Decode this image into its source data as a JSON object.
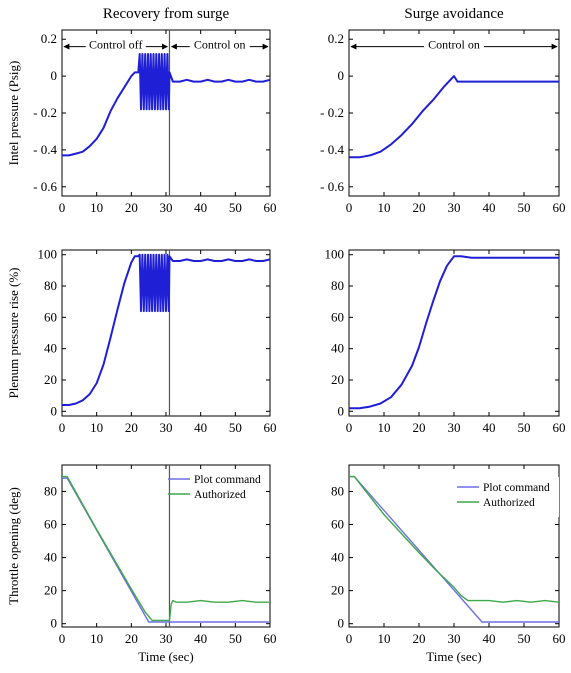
{
  "figure": {
    "column_titles": [
      "Recovery from surge",
      "Surge avoidance"
    ],
    "row_ylabels": [
      "Intel pressure (Psig)",
      "Plenum pressure rise (%)",
      "Throttle opening (deg)"
    ],
    "xlabel": "Time (sec)"
  },
  "colors": {
    "trace": "#1f1fd6",
    "command": "#6f6fe6",
    "authorized": "#3fa84a",
    "marker": "#555555"
  },
  "chart_data": [
    {
      "id": "inlet-recovery",
      "type": "line",
      "title": "Recovery from surge",
      "xlabel": "",
      "ylabel": "Intel pressure (Psig)",
      "xlim": [
        0,
        60
      ],
      "ylim": [
        -0.65,
        0.25
      ],
      "xticks": [
        0,
        10,
        20,
        30,
        40,
        50,
        60
      ],
      "yticks": [
        -0.6,
        -0.4,
        -0.2,
        0,
        0.2
      ],
      "ytick_labels": [
        "- 0.6",
        "- 0.4",
        "- 0.2",
        "0",
        "0.2"
      ],
      "grid": false,
      "vline": 31,
      "annotations": [
        {
          "text": "Control off",
          "x_start": 0,
          "x_end": 31,
          "y": 0.16
        },
        {
          "text": "Control on",
          "x_start": 31,
          "x_end": 60,
          "y": 0.16
        }
      ],
      "series": [
        {
          "x": [
            0,
            2,
            4,
            6,
            8,
            10,
            12,
            14,
            16,
            18,
            20,
            21,
            22,
            31,
            32,
            34,
            36,
            38,
            40,
            42,
            44,
            46,
            48,
            50,
            52,
            54,
            56,
            58,
            60
          ],
          "values": [
            -0.43,
            -0.43,
            -0.42,
            -0.41,
            -0.38,
            -0.34,
            -0.28,
            -0.19,
            -0.12,
            -0.06,
            0.0,
            0.02,
            0.02,
            0.02,
            -0.03,
            -0.03,
            -0.02,
            -0.03,
            -0.03,
            -0.02,
            -0.03,
            -0.03,
            -0.02,
            -0.03,
            -0.03,
            -0.02,
            -0.03,
            -0.03,
            -0.02
          ],
          "oscillation": {
            "x_from": 22,
            "x_to": 31,
            "high": 0.12,
            "low": -0.18,
            "period": 0.8
          }
        }
      ]
    },
    {
      "id": "inlet-avoidance",
      "type": "line",
      "title": "Surge avoidance",
      "xlabel": "",
      "ylabel": "",
      "xlim": [
        0,
        60
      ],
      "ylim": [
        -0.65,
        0.25
      ],
      "xticks": [
        0,
        10,
        20,
        30,
        40,
        50,
        60
      ],
      "yticks": [
        -0.6,
        -0.4,
        -0.2,
        0,
        0.2
      ],
      "ytick_labels": [
        "- 0.6",
        "- 0.4",
        "- 0.2",
        "0",
        "0.2"
      ],
      "grid": false,
      "annotations": [
        {
          "text": "Control on",
          "x_start": 0,
          "x_end": 60,
          "y": 0.16
        }
      ],
      "series": [
        {
          "x": [
            0,
            3,
            6,
            9,
            12,
            15,
            18,
            21,
            24,
            27,
            30,
            31,
            35,
            40,
            45,
            50,
            55,
            60
          ],
          "values": [
            -0.44,
            -0.44,
            -0.43,
            -0.41,
            -0.37,
            -0.32,
            -0.26,
            -0.19,
            -0.13,
            -0.06,
            0.0,
            -0.03,
            -0.03,
            -0.03,
            -0.03,
            -0.03,
            -0.03,
            -0.03
          ]
        }
      ]
    },
    {
      "id": "plenum-recovery",
      "type": "line",
      "title": "",
      "xlabel": "",
      "ylabel": "Plenum pressure rise (%)",
      "xlim": [
        0,
        60
      ],
      "ylim": [
        -3,
        103
      ],
      "xticks": [
        0,
        10,
        20,
        30,
        40,
        50,
        60
      ],
      "yticks": [
        0,
        20,
        40,
        60,
        80,
        100
      ],
      "ytick_labels": [
        "0",
        "20",
        "40",
        "60",
        "80",
        "100"
      ],
      "grid": false,
      "vline": 31,
      "series": [
        {
          "x": [
            0,
            2,
            4,
            6,
            8,
            10,
            12,
            14,
            16,
            18,
            20,
            21,
            22,
            31,
            32,
            34,
            36,
            38,
            40,
            42,
            44,
            46,
            48,
            50,
            52,
            54,
            56,
            58,
            60
          ],
          "values": [
            4,
            4,
            5,
            7,
            11,
            18,
            30,
            47,
            65,
            82,
            95,
            99,
            99,
            99,
            96,
            96,
            97,
            96,
            96,
            97,
            96,
            96,
            97,
            96,
            96,
            97,
            96,
            96,
            97
          ],
          "oscillation": {
            "x_from": 22,
            "x_to": 31,
            "high": 100,
            "low": 64,
            "period": 0.8
          }
        }
      ]
    },
    {
      "id": "plenum-avoidance",
      "type": "line",
      "title": "",
      "xlabel": "",
      "ylabel": "",
      "xlim": [
        0,
        60
      ],
      "ylim": [
        -3,
        103
      ],
      "xticks": [
        0,
        10,
        20,
        30,
        40,
        50,
        60
      ],
      "yticks": [
        0,
        20,
        40,
        60,
        80,
        100
      ],
      "ytick_labels": [
        "0",
        "20",
        "40",
        "60",
        "80",
        "100"
      ],
      "grid": false,
      "series": [
        {
          "x": [
            0,
            3,
            6,
            9,
            12,
            15,
            18,
            20,
            22,
            24,
            26,
            28,
            30,
            32,
            35,
            40,
            45,
            50,
            55,
            60
          ],
          "values": [
            2,
            2,
            3,
            5,
            9,
            17,
            29,
            41,
            56,
            70,
            83,
            93,
            99,
            99,
            98,
            98,
            98,
            98,
            98,
            98
          ]
        }
      ]
    },
    {
      "id": "throttle-recovery",
      "type": "line",
      "title": "",
      "xlabel": "Time (sec)",
      "ylabel": "Throttle opening (deg)",
      "xlim": [
        0,
        60
      ],
      "ylim": [
        -2,
        96
      ],
      "xticks": [
        0,
        10,
        20,
        30,
        40,
        50,
        60
      ],
      "yticks": [
        0,
        20,
        40,
        60,
        80
      ],
      "ytick_labels": [
        "0",
        "20",
        "40",
        "60",
        "80"
      ],
      "grid": false,
      "vline": 31,
      "legend": {
        "position": "top-right",
        "entries": [
          "Plot command",
          "Authorized"
        ]
      },
      "series": [
        {
          "name": "Plot command",
          "x": [
            0,
            1.5,
            25,
            31,
            60
          ],
          "values": [
            88,
            88,
            1,
            1,
            1
          ]
        },
        {
          "name": "Authorized",
          "x": [
            0,
            1.5,
            10,
            20,
            24,
            26,
            31,
            31.5,
            32,
            33,
            36,
            40,
            44,
            48,
            52,
            56,
            60
          ],
          "values": [
            89,
            89,
            57,
            21,
            7,
            2,
            2,
            12,
            14,
            13,
            13,
            14,
            13,
            13,
            14,
            13,
            13
          ]
        }
      ]
    },
    {
      "id": "throttle-avoidance",
      "type": "line",
      "title": "",
      "xlabel": "Time (sec)",
      "ylabel": "",
      "xlim": [
        0,
        60
      ],
      "ylim": [
        -2,
        96
      ],
      "xticks": [
        0,
        10,
        20,
        30,
        40,
        50,
        60
      ],
      "yticks": [
        0,
        20,
        40,
        60,
        80
      ],
      "ytick_labels": [
        "0",
        "20",
        "40",
        "60",
        "80"
      ],
      "grid": false,
      "legend": {
        "position": "top-right",
        "entries": [
          "Plot command",
          "Authorized"
        ]
      },
      "series": [
        {
          "name": "Plot command",
          "x": [
            0,
            1.5,
            38,
            60
          ],
          "values": [
            89,
            89,
            1,
            1
          ]
        },
        {
          "name": "Authorized",
          "x": [
            0,
            1.5,
            10,
            20,
            25,
            30,
            32,
            34,
            36,
            40,
            44,
            48,
            52,
            56,
            60
          ],
          "values": [
            89,
            89,
            66,
            43,
            32,
            22,
            17,
            14,
            14,
            14,
            13,
            14,
            13,
            14,
            13
          ]
        }
      ]
    }
  ]
}
